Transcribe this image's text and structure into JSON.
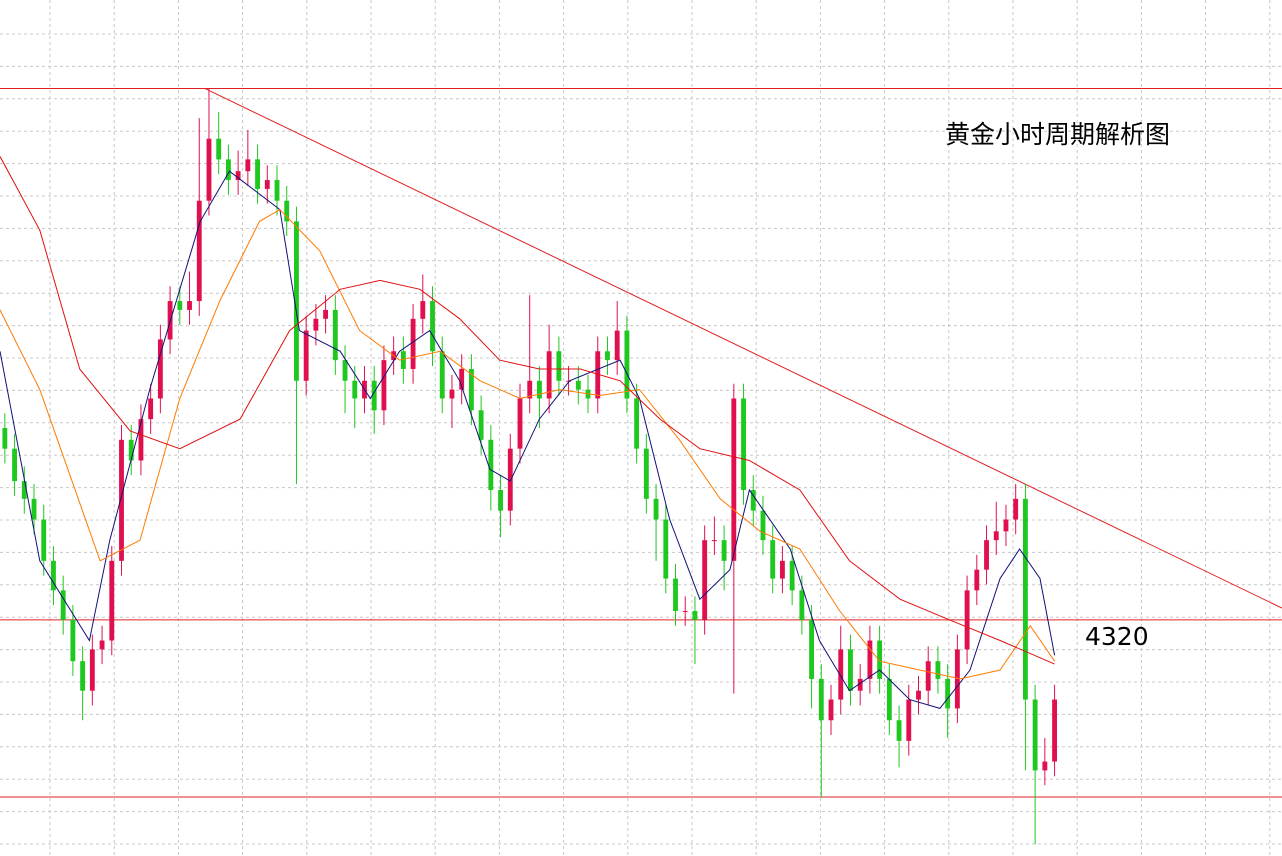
{
  "chart_data": {
    "type": "candlestick",
    "title": "黄金小时周期解析图",
    "grid": true,
    "xlim": [
      -0.5,
      131.4
    ],
    "ylim": [
      4240,
      4530
    ],
    "up_color": "#e0104f",
    "down_color": "#1ec81e",
    "level_color": "#e02020",
    "levels": [
      4500,
      4320,
      4260
    ],
    "trendline": {
      "color": "#e02020",
      "x": [
        20.6,
        131.4
      ],
      "y": [
        4500,
        4324
      ]
    },
    "open": [
      4385,
      4378,
      4367,
      4361,
      4354,
      4340,
      4330,
      4320,
      4306,
      4296,
      4310,
      4313,
      4340,
      4381,
      4374,
      4388,
      4395,
      4415,
      4428,
      4425,
      4428,
      4462,
      4483,
      4476,
      4469,
      4472,
      4476,
      4466,
      4469,
      4462,
      4455,
      4401,
      4418,
      4422,
      4425,
      4408,
      4401,
      4395,
      4401,
      4391,
      4408,
      4411,
      4405,
      4422,
      4428,
      4411,
      4395,
      4398,
      4405,
      4391,
      4381,
      4364,
      4357,
      4378,
      4395,
      4401,
      4395,
      4411,
      4401,
      4401,
      4398,
      4395,
      4411,
      4408,
      4418,
      4395,
      4378,
      4361,
      4354,
      4334,
      4323,
      4323,
      4320,
      4347,
      4347,
      4340,
      4395,
      4364,
      4357,
      4347,
      4334,
      4340,
      4330,
      4320,
      4300,
      4286,
      4293,
      4310,
      4296,
      4300,
      4313,
      4300,
      4286,
      4279,
      4293,
      4296,
      4306,
      4300,
      4290,
      4310,
      4330,
      4337,
      4347,
      4350,
      4354,
      4361,
      4293,
      4269,
      4272
    ],
    "high": [
      4390,
      4383,
      4372,
      4366,
      4359,
      4345,
      4335,
      4325,
      4311,
      4315,
      4318,
      4345,
      4386,
      4386,
      4393,
      4400,
      4420,
      4433,
      4433,
      4438,
      4490,
      4500,
      4492,
      4481,
      4479,
      4486,
      4481,
      4474,
      4474,
      4467,
      4460,
      4423,
      4427,
      4430,
      4430,
      4413,
      4406,
      4406,
      4406,
      4413,
      4416,
      4416,
      4427,
      4437,
      4433,
      4416,
      4403,
      4410,
      4410,
      4396,
      4386,
      4369,
      4383,
      4400,
      4430,
      4406,
      4420,
      4416,
      4406,
      4406,
      4403,
      4416,
      4416,
      4428,
      4423,
      4400,
      4383,
      4366,
      4359,
      4339,
      4328,
      4328,
      4352,
      4355,
      4352,
      4400,
      4400,
      4369,
      4362,
      4352,
      4345,
      4345,
      4335,
      4325,
      4305,
      4298,
      4318,
      4315,
      4305,
      4318,
      4318,
      4305,
      4291,
      4298,
      4301,
      4311,
      4311,
      4305,
      4315,
      4335,
      4342,
      4352,
      4360,
      4359,
      4366,
      4366,
      4298,
      4280,
      4298
    ],
    "low": [
      4373,
      4362,
      4356,
      4349,
      4335,
      4325,
      4315,
      4301,
      4286,
      4291,
      4305,
      4308,
      4335,
      4369,
      4369,
      4383,
      4390,
      4410,
      4420,
      4420,
      4423,
      4457,
      4471,
      4464,
      4464,
      4467,
      4461,
      4461,
      4457,
      4450,
      4366,
      4396,
      4413,
      4417,
      4403,
      4390,
      4385,
      4390,
      4383,
      4386,
      4403,
      4400,
      4400,
      4417,
      4406,
      4390,
      4385,
      4393,
      4386,
      4376,
      4357,
      4348,
      4352,
      4373,
      4390,
      4385,
      4390,
      4396,
      4396,
      4393,
      4390,
      4390,
      4403,
      4403,
      4390,
      4373,
      4356,
      4340,
      4329,
      4318,
      4318,
      4305,
      4315,
      4342,
      4330,
      4295,
      4359,
      4352,
      4342,
      4329,
      4329,
      4325,
      4315,
      4290,
      4260,
      4281,
      4288,
      4291,
      4291,
      4295,
      4295,
      4281,
      4270,
      4274,
      4288,
      4291,
      4295,
      4280,
      4285,
      4305,
      4325,
      4332,
      4342,
      4345,
      4349,
      4269,
      4244,
      4264,
      4267
    ],
    "close": [
      4378,
      4367,
      4361,
      4354,
      4340,
      4330,
      4320,
      4306,
      4296,
      4310,
      4313,
      4340,
      4381,
      4374,
      4388,
      4395,
      4415,
      4428,
      4425,
      4428,
      4462,
      4483,
      4476,
      4469,
      4472,
      4476,
      4466,
      4469,
      4462,
      4455,
      4401,
      4418,
      4422,
      4425,
      4408,
      4401,
      4395,
      4401,
      4391,
      4408,
      4411,
      4405,
      4422,
      4428,
      4411,
      4395,
      4398,
      4405,
      4391,
      4381,
      4364,
      4357,
      4378,
      4395,
      4401,
      4395,
      4411,
      4401,
      4401,
      4398,
      4395,
      4411,
      4408,
      4418,
      4395,
      4378,
      4361,
      4354,
      4334,
      4323,
      4323,
      4320,
      4347,
      4347,
      4340,
      4395,
      4364,
      4357,
      4347,
      4334,
      4340,
      4330,
      4320,
      4300,
      4286,
      4293,
      4310,
      4296,
      4300,
      4313,
      4300,
      4286,
      4279,
      4293,
      4296,
      4306,
      4300,
      4290,
      4310,
      4330,
      4337,
      4347,
      4350,
      4354,
      4361,
      4293,
      4269,
      4272,
      4293
    ],
    "lines": [
      {
        "color": "#10107a",
        "x": [
          -0.5,
          3.6,
          8.7,
          10.8,
          14.9,
          20.1,
          23.1,
          28.3,
          30.3,
          34.5,
          37.6,
          40.6,
          43.7,
          46.8,
          49.9,
          52,
          55,
          58.1,
          63.3,
          65.3,
          68.4,
          71.5,
          74.6,
          76.6,
          80.8,
          83.8,
          86.9,
          90,
          93.1,
          96.2,
          99.3,
          102.4,
          104.4,
          106.5,
          108
        ],
        "values": [
          4411,
          4340,
          4313,
          4347,
          4398,
          4455,
          4472,
          4459,
          4418,
          4411,
          4395,
          4411,
          4418,
          4401,
          4371,
          4367,
          4388,
          4401,
          4408,
          4395,
          4354,
          4327,
          4337,
          4364,
          4344,
          4313,
          4296,
          4303,
          4293,
          4290,
          4303,
          4334,
          4344,
          4334,
          4308
        ]
      },
      {
        "color": "#ff7a00",
        "x": [
          -0.5,
          3.6,
          9.8,
          13.9,
          18,
          22.1,
          26.2,
          28.3,
          32.4,
          36.5,
          40.6,
          44.8,
          48.9,
          53,
          57.1,
          61.2,
          65.3,
          69.4,
          73.6,
          77.7,
          81.8,
          85.9,
          90,
          94.1,
          98.3,
          102.4,
          105.5,
          108
        ],
        "values": [
          4425,
          4398,
          4340,
          4347,
          4395,
          4428,
          4455,
          4459,
          4445,
          4418,
          4408,
          4411,
          4401,
          4395,
          4398,
          4396,
          4398,
          4381,
          4361,
          4350,
          4344,
          4323,
          4306,
          4303,
          4300,
          4303,
          4318,
          4306
        ]
      },
      {
        "color": "#e01010",
        "x": [
          -0.5,
          3.6,
          7.7,
          12.9,
          18,
          24.2,
          29.3,
          34.5,
          38.6,
          42.7,
          46.8,
          50.9,
          55,
          59.2,
          63.3,
          67.4,
          71.5,
          76.6,
          81.8,
          86.9,
          92.1,
          97.2,
          102.4,
          108
        ],
        "values": [
          4477,
          4452,
          4405,
          4384,
          4378,
          4388,
          4418,
          4432,
          4435,
          4432,
          4422,
          4408,
          4405,
          4405,
          4401,
          4388,
          4378,
          4374,
          4364,
          4340,
          4327,
          4320,
          4313,
          4305
        ]
      }
    ]
  }
}
